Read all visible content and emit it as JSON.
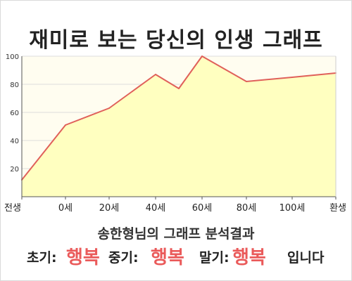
{
  "title": "재미로 보는 당신의 인생 그래프",
  "chart_data": {
    "type": "area",
    "x_tick_labels": [
      "전생",
      "0세",
      "20세",
      "40세",
      "60세",
      "80세",
      "100세",
      "환생"
    ],
    "y_ticks": [
      20,
      40,
      60,
      80,
      100
    ],
    "ylim": [
      0,
      100
    ],
    "grid": true,
    "series": [
      {
        "points": [
          {
            "x": "전생",
            "y": 12
          },
          {
            "x": "0세",
            "y": 51
          },
          {
            "x": "20세",
            "y": 63
          },
          {
            "x": "30세",
            "y": 75
          },
          {
            "x": "40세",
            "y": 87
          },
          {
            "x": "50세",
            "y": 77
          },
          {
            "x": "60세",
            "y": 100
          },
          {
            "x": "80세",
            "y": 82
          },
          {
            "x": "100세",
            "y": 85
          },
          {
            "x": "환생",
            "y": 88
          }
        ]
      }
    ],
    "colors": {
      "line": "#e0605a",
      "fill": "#ffffc0",
      "plot_bg": "#fffdf0",
      "grid": "#dddddd"
    }
  },
  "summary": "송한형님의 그래프 분석결과",
  "result": {
    "early_label": "초기:",
    "early_value": "행복",
    "middle_label": "중기:",
    "middle_value": "행복",
    "late_label": "말기:",
    "late_value": "행복",
    "ending": "입니다"
  }
}
